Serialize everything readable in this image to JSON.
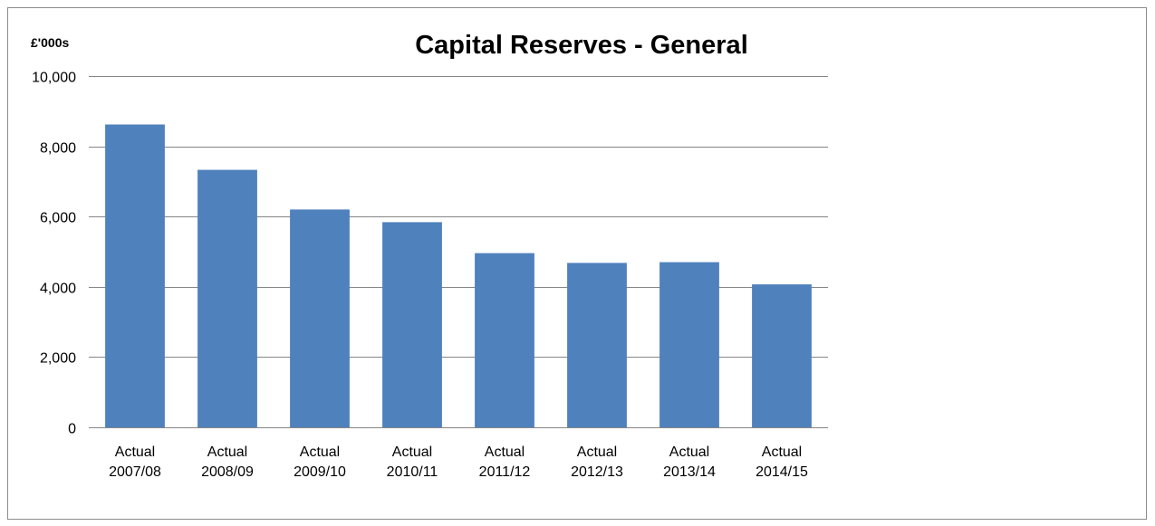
{
  "chart_data": {
    "type": "bar",
    "title": "Capital Reserves - General",
    "unit_label": "£'000s",
    "categories": [
      [
        "Actual",
        "2007/08"
      ],
      [
        "Actual",
        "2008/09"
      ],
      [
        "Actual",
        "2009/10"
      ],
      [
        "Actual",
        "2010/11"
      ],
      [
        "Actual",
        "2011/12"
      ],
      [
        "Actual",
        "2012/13"
      ],
      [
        "Actual",
        "2013/14"
      ],
      [
        "Actual",
        "2014/15"
      ]
    ],
    "values": [
      8620,
      7330,
      6200,
      5840,
      4960,
      4680,
      4700,
      4070
    ],
    "ylim": [
      0,
      10000
    ],
    "yticks": [
      0,
      2000,
      4000,
      6000,
      8000,
      10000
    ],
    "ytick_labels": [
      "0",
      "2,000",
      "4,000",
      "6,000",
      "8,000",
      "10,000"
    ],
    "grid": true,
    "bar_color": "#4f81bd",
    "grid_color": "#868686"
  }
}
